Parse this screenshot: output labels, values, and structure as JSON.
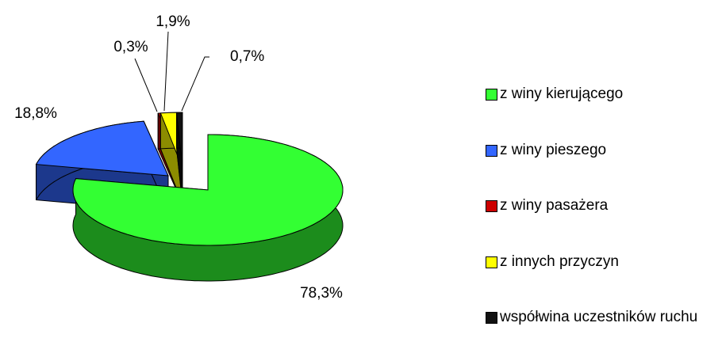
{
  "chart_data": {
    "type": "pie",
    "categories": [
      "z winy kierującego",
      "z winy pieszego",
      "z winy pasażera",
      "z innych przyczyn",
      "współwina uczestników ruchu"
    ],
    "values": [
      78.3,
      18.8,
      0.3,
      1.9,
      0.7
    ],
    "value_labels": [
      "78,3%",
      "18,8%",
      "0,3%",
      "1,9%",
      "0,7%"
    ],
    "colors": [
      "#33ff33",
      "#3366ff",
      "#cc0000",
      "#ffff00",
      "#111111"
    ],
    "legend": "right"
  }
}
